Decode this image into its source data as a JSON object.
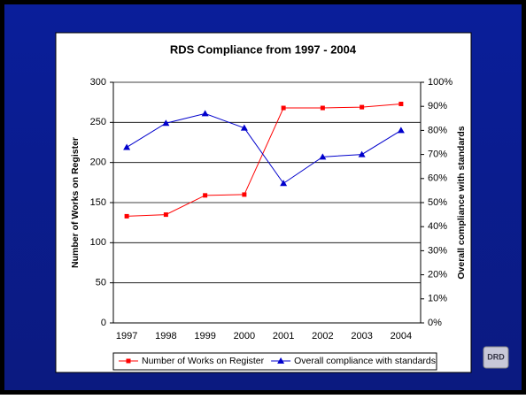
{
  "chart_data": {
    "type": "line",
    "title": "RDS Compliance from 1997 - 2004",
    "y_label": "Number of Works on Register",
    "y2_label": "Overall compliance with standards",
    "categories": [
      "1997",
      "1998",
      "1999",
      "2000",
      "2001",
      "2002",
      "2003",
      "2004"
    ],
    "series": [
      {
        "name": "Number of Works on Register",
        "color": "#ff0000",
        "marker": "square",
        "values": [
          133,
          135,
          159,
          160,
          268,
          268,
          269,
          273
        ]
      },
      {
        "name": "Overall compliance with standards",
        "color": "#0000cc",
        "marker": "triangle",
        "axis": "y2",
        "values": [
          73,
          83,
          87,
          81,
          58,
          69,
          70,
          80
        ]
      }
    ],
    "ylim": [
      0,
      300
    ],
    "yticks": [
      0,
      50,
      100,
      150,
      200,
      250,
      300
    ],
    "y2lim": [
      0,
      100
    ],
    "y2ticks": [
      {
        "value": 0,
        "label": "0%"
      },
      {
        "value": 10,
        "label": "10%"
      },
      {
        "value": 20,
        "label": "20%"
      },
      {
        "value": 30,
        "label": "30%"
      },
      {
        "value": 40,
        "label": "40%"
      },
      {
        "value": 50,
        "label": "50%"
      },
      {
        "value": 60,
        "label": "60%"
      },
      {
        "value": 70,
        "label": "70%"
      },
      {
        "value": 80,
        "label": "80%"
      },
      {
        "value": 90,
        "label": "90%"
      },
      {
        "value": 100,
        "label": "100%"
      }
    ],
    "grid": true,
    "legend": "bottom"
  }
}
